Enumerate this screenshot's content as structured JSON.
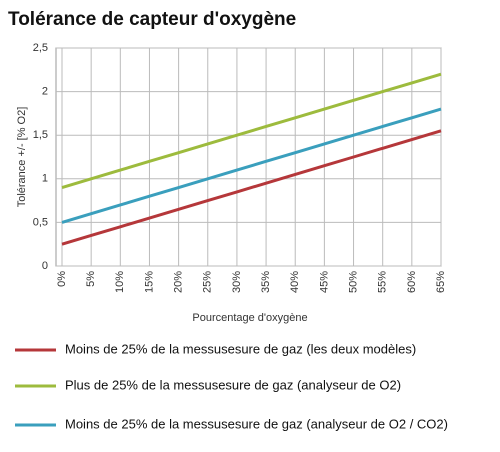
{
  "chart_data": {
    "type": "line",
    "title": "Tolérance de capteur d'oxygène",
    "y_label": "Tolérance +/- [% O2]",
    "x_label": "Pourcentage d'oxygène",
    "x": [
      0,
      5,
      10,
      15,
      20,
      25,
      30,
      35,
      40,
      45,
      50,
      55,
      60,
      65
    ],
    "xlim": [
      0,
      65
    ],
    "xticks": [
      {
        "value": 0,
        "label": "0%"
      },
      {
        "value": 5,
        "label": "5%"
      },
      {
        "value": 10,
        "label": "10%"
      },
      {
        "value": 15,
        "label": "15%"
      },
      {
        "value": 20,
        "label": "20%"
      },
      {
        "value": 25,
        "label": "25%"
      },
      {
        "value": 30,
        "label": "30%"
      },
      {
        "value": 35,
        "label": "35%"
      },
      {
        "value": 40,
        "label": "40%"
      },
      {
        "value": 45,
        "label": "45%"
      },
      {
        "value": 50,
        "label": "50%"
      },
      {
        "value": 55,
        "label": "55%"
      },
      {
        "value": 60,
        "label": "60%"
      },
      {
        "value": 65,
        "label": "65%"
      }
    ],
    "ylim": [
      0,
      2.5
    ],
    "yticks": [
      0,
      {
        "value": 0.5,
        "label": "0,5"
      },
      1,
      {
        "value": 1.5,
        "label": "1,5"
      },
      2,
      {
        "value": 2.5,
        "label": "2,5"
      }
    ],
    "grid": true,
    "series": [
      {
        "name": "Moins de 25% de la messusesure de gaz (les deux modèles)",
        "color": "#b5373a",
        "values": [
          0.25,
          0.35,
          0.45,
          0.55,
          0.65,
          0.75,
          0.85,
          0.95,
          1.05,
          1.15,
          1.25,
          1.35,
          1.45,
          1.55
        ]
      },
      {
        "name": "Plus de 25% de la messusesure de gaz (analyseur de O2)",
        "color": "#9dbb3d",
        "values": [
          0.9,
          1.0,
          1.1,
          1.2,
          1.3,
          1.4,
          1.5,
          1.6,
          1.7,
          1.8,
          1.9,
          2.0,
          2.1,
          2.2
        ]
      },
      {
        "name": "Moins de 25% de la messusesure de gaz (analyseur de O2 / CO2)",
        "color": "#3a9fbd",
        "values": [
          0.5,
          0.6,
          0.7,
          0.8,
          0.9,
          1.0,
          1.1,
          1.2,
          1.3,
          1.4,
          1.5,
          1.6,
          1.7,
          1.8
        ]
      }
    ]
  }
}
